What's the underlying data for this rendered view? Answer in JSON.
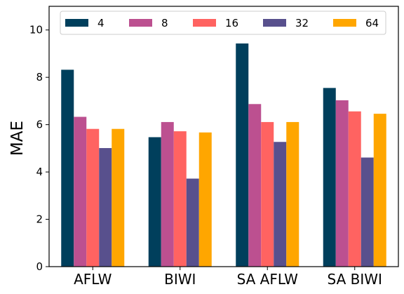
{
  "chart_data": {
    "type": "bar",
    "categories": [
      "AFLW",
      "BIWI",
      "SA AFLW",
      "SA BIWI"
    ],
    "series": [
      {
        "name": "4",
        "color": "#003f5c",
        "values": [
          8.32,
          5.47,
          9.43,
          7.55
        ]
      },
      {
        "name": "8",
        "color": "#bc5090",
        "values": [
          6.33,
          6.11,
          6.87,
          7.03
        ]
      },
      {
        "name": "16",
        "color": "#ff6361",
        "values": [
          5.82,
          5.72,
          6.11,
          6.56
        ]
      },
      {
        "name": "32",
        "color": "#58508d",
        "values": [
          5.01,
          3.72,
          5.27,
          4.61
        ]
      },
      {
        "name": "64",
        "color": "#ffa600",
        "values": [
          5.82,
          5.67,
          6.11,
          6.46
        ]
      }
    ],
    "title": "",
    "xlabel": "",
    "ylabel": "MAE",
    "ylim": [
      0,
      11
    ],
    "yticks": [
      0,
      2,
      4,
      6,
      8,
      10
    ],
    "grid": false,
    "legend_position": "top"
  }
}
